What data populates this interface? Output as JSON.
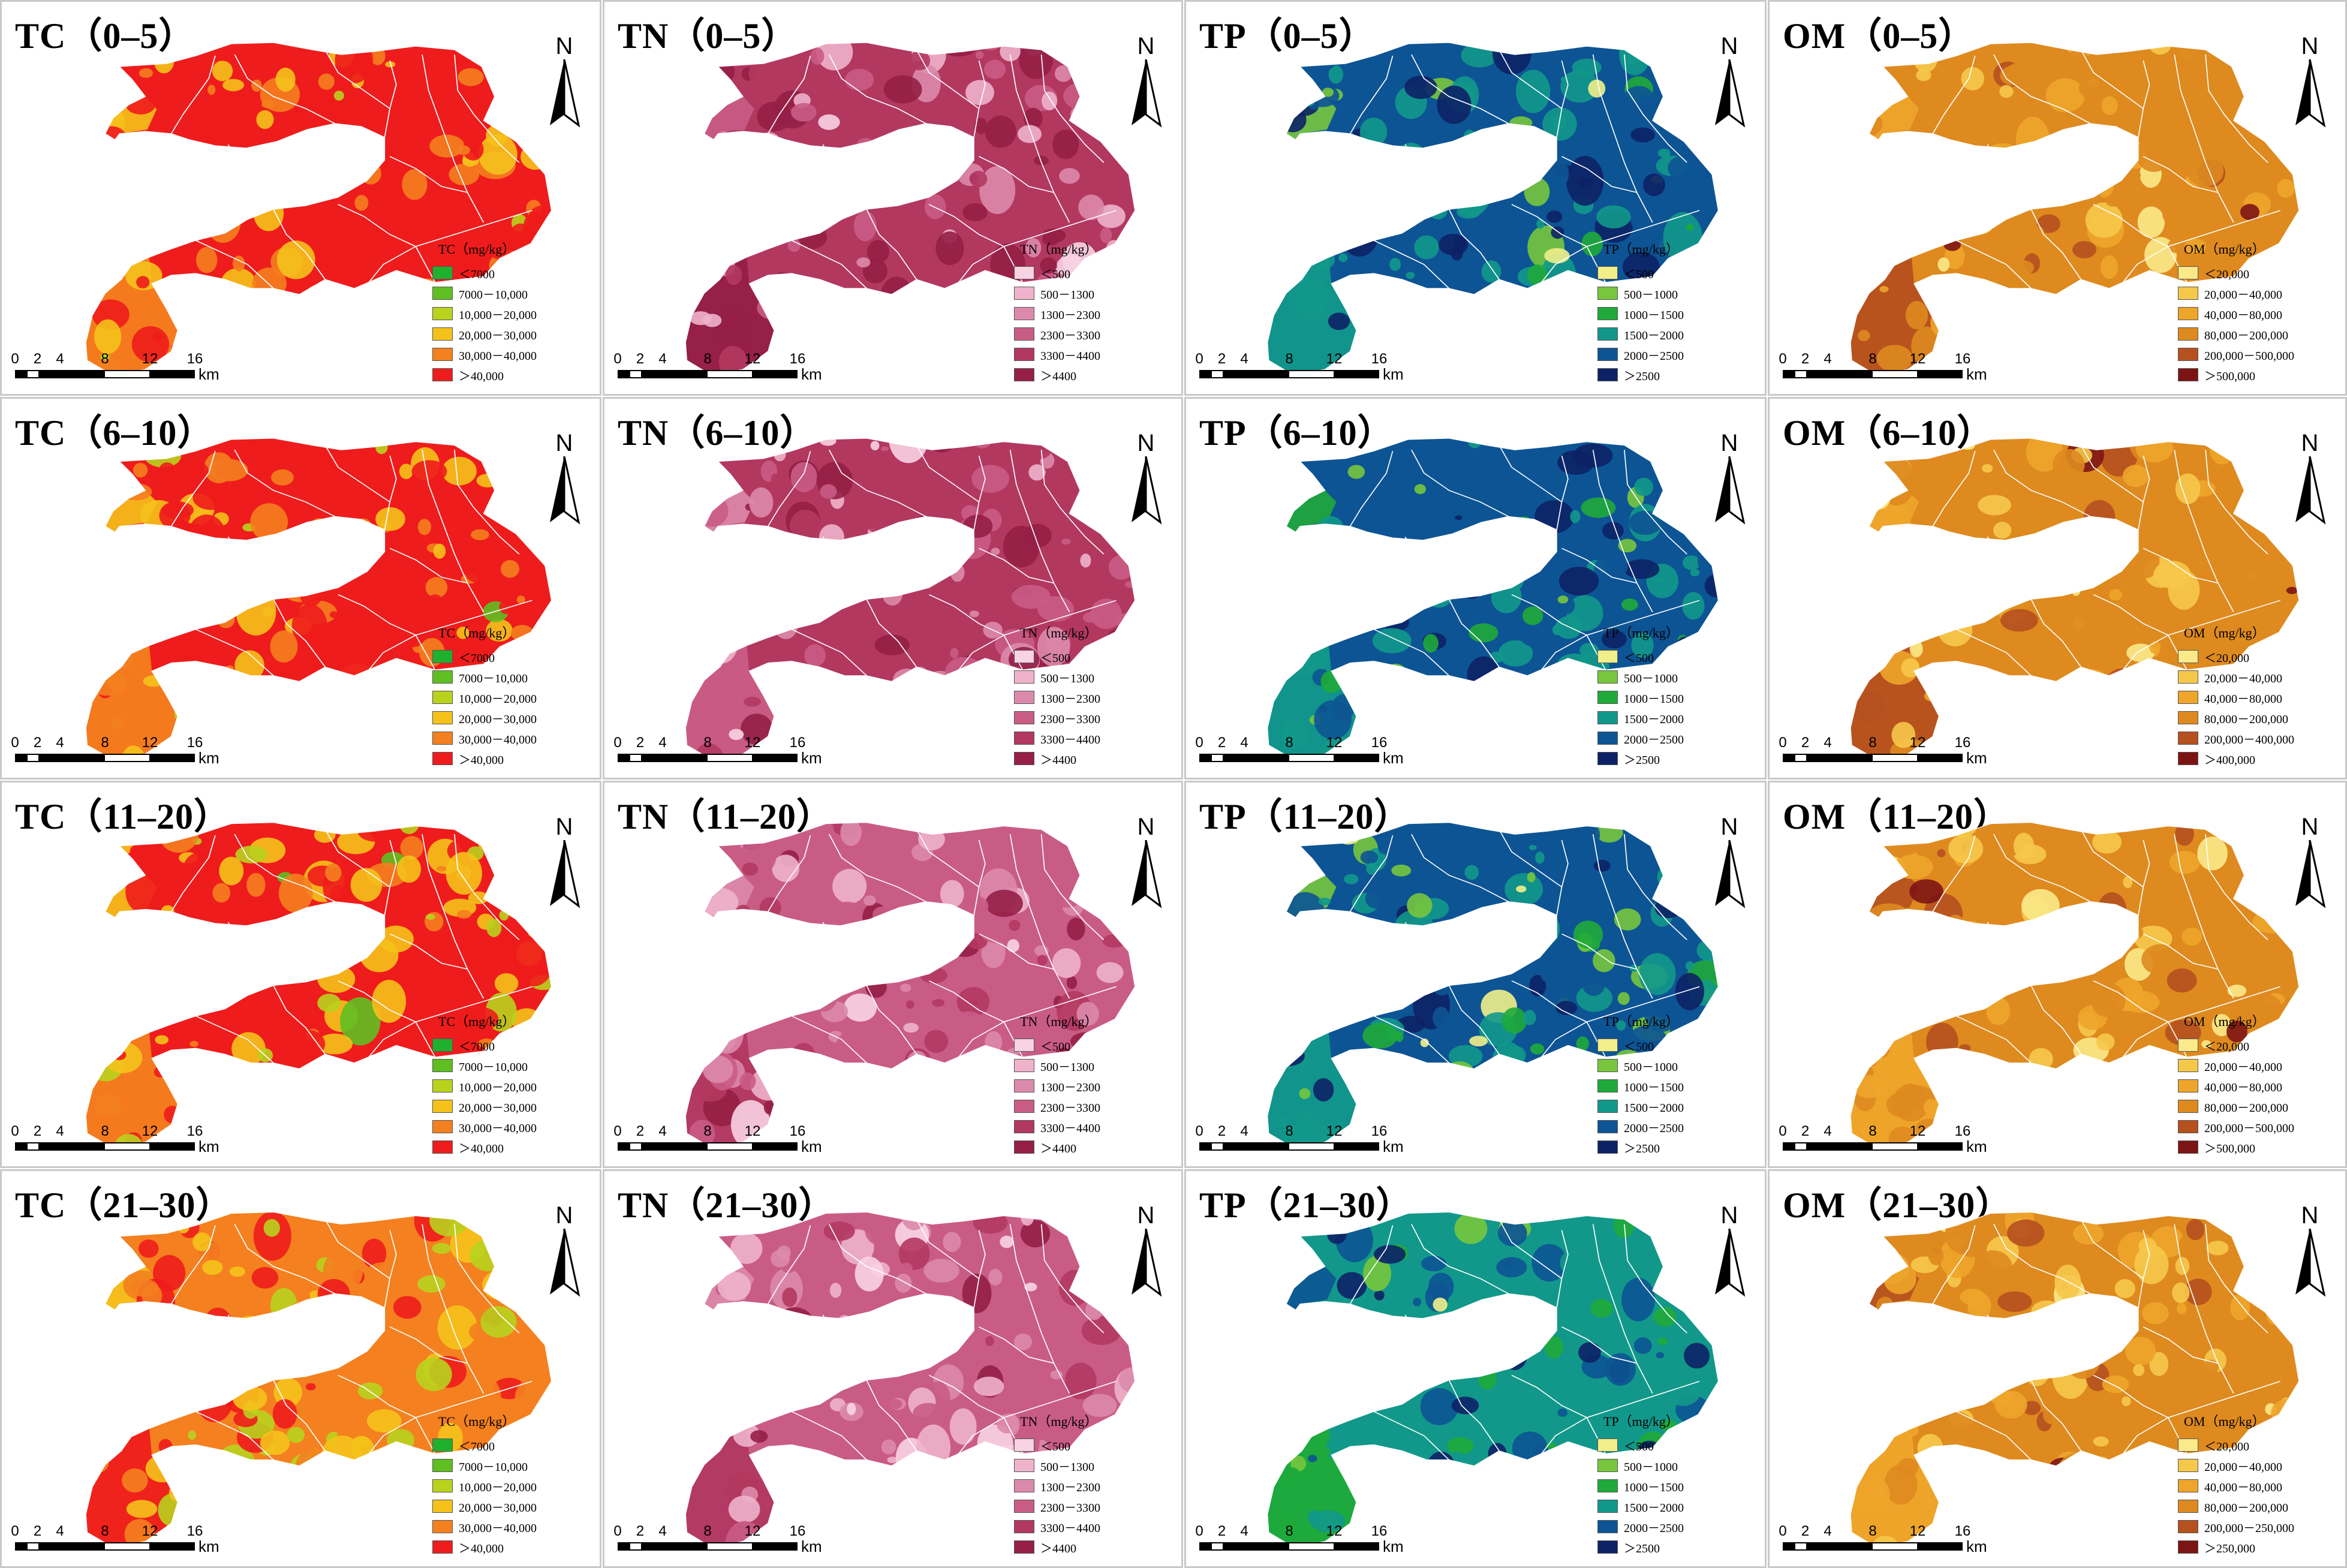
{
  "scale_bar": {
    "ticks": [
      "0",
      "2",
      "4",
      "8",
      "12",
      "16"
    ],
    "unit": "km"
  },
  "north_label": "N",
  "icons": {
    "north_arrow": "north-arrow-icon"
  },
  "variables": [
    {
      "key": "TC",
      "legend_title": "TC（mg/kg）",
      "classes": [
        {
          "label": "＜7000",
          "color": "#1fb02e"
        },
        {
          "label": "7000－10,000",
          "color": "#5fbf22"
        },
        {
          "label": "10,000－20,000",
          "color": "#b9d21e"
        },
        {
          "label": "20,000－30,000",
          "color": "#f5c21b"
        },
        {
          "label": "30,000－40,000",
          "color": "#f4801f"
        },
        {
          "label": "＞40,000",
          "color": "#ee1c1c"
        }
      ]
    },
    {
      "key": "TN",
      "legend_title": "TN（mg/kg）",
      "classes": [
        {
          "label": "＜500",
          "color": "#f8d3e3"
        },
        {
          "label": "500－1300",
          "color": "#eeb2cb"
        },
        {
          "label": "1300－2300",
          "color": "#dc8aab"
        },
        {
          "label": "2300－3300",
          "color": "#c95c85"
        },
        {
          "label": "3300－4400",
          "color": "#b23860"
        },
        {
          "label": "＞4400",
          "color": "#951f46"
        }
      ]
    },
    {
      "key": "TP",
      "legend_title": "TP（mg/kg）",
      "classes": [
        {
          "label": "＜500",
          "color": "#f2ef8a"
        },
        {
          "label": "500－1000",
          "color": "#77c63d"
        },
        {
          "label": "1000－1500",
          "color": "#1faa3a"
        },
        {
          "label": "1500－2000",
          "color": "#12988a"
        },
        {
          "label": "2000－2500",
          "color": "#0d5494"
        },
        {
          "label": "＞2500",
          "color": "#0d2266"
        }
      ]
    },
    {
      "key": "OM",
      "legend_title": "OM（mg/kg）",
      "classes": [
        {
          "label": "＜20,000",
          "color": "#fbe98a"
        },
        {
          "label": "20,000－40,000",
          "color": "#f6c84a"
        },
        {
          "label": "40,000－80,000",
          "color": "#eea52a"
        },
        {
          "label": "80,000－200,000",
          "color": "#de8a1f"
        },
        {
          "label": "200,000－500,000",
          "color": "#b5501f"
        },
        {
          "label": "＞500,000",
          "color": "#7d1414"
        }
      ]
    }
  ],
  "legend_overrides": {
    "OM|6–10": {
      "4": "200,000－400,000",
      "5": "＞400,000"
    },
    "OM|21–30": {
      "4": "200,000－250,000",
      "5": "＞250,000"
    }
  },
  "panels": [
    {
      "title": "TC（0–5）",
      "var": "TC",
      "depth": "0–5",
      "base": 5,
      "mottle": [
        4,
        3
      ],
      "dist": [
        0,
        0,
        0.05,
        0.15,
        0.25,
        0.55
      ]
    },
    {
      "title": "TN（0–5）",
      "var": "TN",
      "depth": "0–5",
      "base": 4,
      "mottle": [
        5,
        3
      ],
      "dist": [
        0.05,
        0.1,
        0.15,
        0.1,
        0.3,
        0.3
      ]
    },
    {
      "title": "TP（0–5）",
      "var": "TP",
      "depth": "0–5",
      "base": 4,
      "mottle": [
        3,
        1
      ],
      "dist": [
        0.02,
        0.08,
        0.1,
        0.35,
        0.3,
        0.15
      ]
    },
    {
      "title": "OM（0–5）",
      "var": "OM",
      "depth": "0–5",
      "base": 3,
      "mottle": [
        4,
        2
      ],
      "dist": [
        0.05,
        0.15,
        0.2,
        0.5,
        0.08,
        0.02
      ]
    },
    {
      "title": "TC（6–10）",
      "var": "TC",
      "depth": "6–10",
      "base": 5,
      "mottle": [
        4,
        3
      ],
      "dist": [
        0,
        0.02,
        0.08,
        0.2,
        0.25,
        0.45
      ]
    },
    {
      "title": "TN（6–10）",
      "var": "TN",
      "depth": "6–10",
      "base": 4,
      "mottle": [
        3,
        2
      ],
      "dist": [
        0.05,
        0.1,
        0.15,
        0.2,
        0.3,
        0.2
      ]
    },
    {
      "title": "TP（6–10）",
      "var": "TP",
      "depth": "6–10",
      "base": 4,
      "mottle": [
        3,
        2
      ],
      "dist": [
        0.02,
        0.1,
        0.1,
        0.3,
        0.33,
        0.15
      ]
    },
    {
      "title": "OM（6–10）",
      "var": "OM",
      "depth": "6–10",
      "base": 3,
      "mottle": [
        4,
        2
      ],
      "dist": [
        0.05,
        0.15,
        0.25,
        0.45,
        0.08,
        0.02
      ]
    },
    {
      "title": "TC（11–20）",
      "var": "TC",
      "depth": "11–20",
      "base": 5,
      "mottle": [
        4,
        3
      ],
      "dist": [
        0.01,
        0.03,
        0.15,
        0.25,
        0.26,
        0.3
      ]
    },
    {
      "title": "TN（11–20）",
      "var": "TN",
      "depth": "11–20",
      "base": 3,
      "mottle": [
        4,
        2
      ],
      "dist": [
        0.05,
        0.1,
        0.2,
        0.3,
        0.25,
        0.1
      ]
    },
    {
      "title": "TP（11–20）",
      "var": "TP",
      "depth": "11–20",
      "base": 4,
      "mottle": [
        3,
        1
      ],
      "dist": [
        0.05,
        0.12,
        0.1,
        0.33,
        0.3,
        0.1
      ]
    },
    {
      "title": "OM（11–20）",
      "var": "OM",
      "depth": "11–20",
      "base": 3,
      "mottle": [
        2,
        4
      ],
      "dist": [
        0.05,
        0.15,
        0.25,
        0.45,
        0.08,
        0.02
      ]
    },
    {
      "title": "TC（21–30）",
      "var": "TC",
      "depth": "21–30",
      "base": 4,
      "mottle": [
        5,
        3
      ],
      "dist": [
        0,
        0.02,
        0.15,
        0.3,
        0.3,
        0.23
      ]
    },
    {
      "title": "TN（21–30）",
      "var": "TN",
      "depth": "21–30",
      "base": 3,
      "mottle": [
        4,
        2
      ],
      "dist": [
        0.05,
        0.12,
        0.2,
        0.35,
        0.2,
        0.08
      ]
    },
    {
      "title": "TP（21–30）",
      "var": "TP",
      "depth": "21–30",
      "base": 3,
      "mottle": [
        2,
        4
      ],
      "dist": [
        0.02,
        0.1,
        0.15,
        0.38,
        0.25,
        0.1
      ]
    },
    {
      "title": "OM（21–30）",
      "var": "OM",
      "depth": "21–30",
      "base": 3,
      "mottle": [
        2,
        4
      ],
      "dist": [
        0.05,
        0.2,
        0.25,
        0.4,
        0.08,
        0.02
      ]
    }
  ]
}
